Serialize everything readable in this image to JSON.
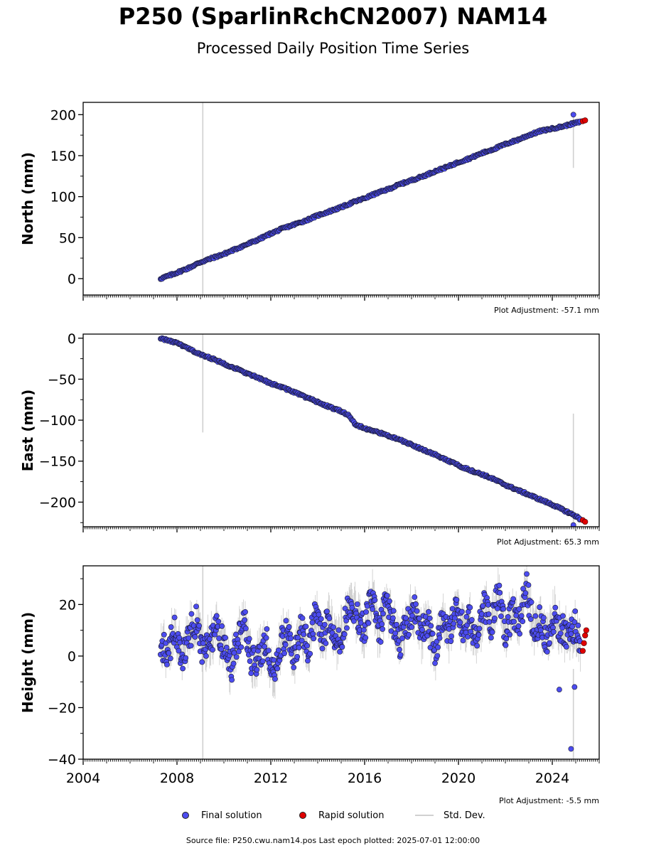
{
  "figure": {
    "title": "P250 (SparlinRchCN2007) NAM14",
    "subtitle": "Processed Daily Position Time Series",
    "legend": {
      "final_label": "Final solution",
      "rapid_label": "Rapid solution",
      "std_label": "Std. Dev."
    },
    "footer": "Source file: P250.cwu.nam14.pos  Last epoch plotted: 2025-07-01 12:00:00",
    "colors": {
      "final": "#4c4cf0",
      "rapid": "#e00000",
      "std": "#b0b0b0",
      "edge": "#1a1a2e"
    }
  },
  "chart_data": [
    {
      "type": "scatter",
      "ylabel": "North (mm)",
      "xlim": [
        2004,
        2026
      ],
      "ylim": [
        -20,
        215
      ],
      "yticks": [
        0,
        50,
        100,
        150,
        200
      ],
      "xticks": [
        2004,
        2008,
        2012,
        2016,
        2020,
        2024
      ],
      "adjustment": "Plot Adjustment: -57.1 mm",
      "series": [
        {
          "name": "Final solution",
          "x": [
            2007.3,
            2007.8,
            2008.5,
            2009.0,
            2009.5,
            2010.0,
            2010.5,
            2011.0,
            2011.5,
            2012.0,
            2012.5,
            2013.0,
            2013.5,
            2014.0,
            2014.5,
            2015.0,
            2015.5,
            2016.0,
            2016.5,
            2017.0,
            2017.5,
            2018.0,
            2018.5,
            2019.0,
            2019.5,
            2020.0,
            2020.5,
            2021.0,
            2021.5,
            2022.0,
            2022.5,
            2023.0,
            2023.5,
            2024.0,
            2024.5,
            2025.0,
            2025.2
          ],
          "y": [
            0,
            5,
            13,
            20,
            25,
            30,
            36,
            42,
            48,
            55,
            61,
            66,
            71,
            77,
            82,
            87,
            93,
            98,
            104,
            109,
            115,
            120,
            125,
            131,
            136,
            142,
            147,
            153,
            158,
            164,
            169,
            175,
            180,
            183,
            186,
            190,
            191
          ]
        },
        {
          "name": "Rapid solution",
          "x": [
            2025.3,
            2025.4
          ],
          "y": [
            192,
            193
          ]
        }
      ],
      "outliers": [
        {
          "x": 2024.9,
          "y": 200
        }
      ],
      "std_spikes": [
        {
          "x": 2009.1,
          "y0": -20,
          "y1": 215
        },
        {
          "x": 2024.9,
          "y0": 135,
          "y1": 200
        }
      ]
    },
    {
      "type": "scatter",
      "ylabel": "East (mm)",
      "xlim": [
        2004,
        2026
      ],
      "ylim": [
        -230,
        5
      ],
      "yticks": [
        0,
        -50,
        -100,
        -150,
        -200
      ],
      "xticks": [
        2004,
        2008,
        2012,
        2016,
        2020,
        2024
      ],
      "adjustment": "Plot Adjustment: 65.3 mm",
      "series": [
        {
          "name": "Final solution",
          "x": [
            2007.3,
            2008.0,
            2008.5,
            2009.0,
            2009.5,
            2010.0,
            2010.5,
            2011.0,
            2011.5,
            2012.0,
            2012.5,
            2013.0,
            2013.5,
            2014.0,
            2014.5,
            2015.0,
            2015.3,
            2015.6,
            2016.0,
            2016.5,
            2017.0,
            2017.5,
            2018.0,
            2018.5,
            2019.0,
            2019.5,
            2020.0,
            2020.5,
            2021.0,
            2021.5,
            2022.0,
            2022.5,
            2023.0,
            2023.5,
            2024.0,
            2024.5,
            2025.0,
            2025.2
          ],
          "y": [
            0,
            -6,
            -13,
            -20,
            -25,
            -31,
            -37,
            -43,
            -49,
            -55,
            -60,
            -66,
            -72,
            -78,
            -84,
            -89,
            -94,
            -105,
            -110,
            -114,
            -119,
            -124,
            -130,
            -136,
            -142,
            -149,
            -155,
            -161,
            -166,
            -172,
            -179,
            -185,
            -191,
            -197,
            -203,
            -210,
            -217,
            -221
          ]
        },
        {
          "name": "Rapid solution",
          "x": [
            2025.3,
            2025.4
          ],
          "y": [
            -222,
            -224
          ]
        }
      ],
      "outliers": [
        {
          "x": 2024.9,
          "y": -228
        }
      ],
      "std_spikes": [
        {
          "x": 2009.1,
          "y0": -115,
          "y1": 5
        },
        {
          "x": 2024.9,
          "y0": -230,
          "y1": -92
        }
      ]
    },
    {
      "type": "scatter",
      "ylabel": "Height (mm)",
      "xlim": [
        2004,
        2026
      ],
      "ylim": [
        -40,
        35
      ],
      "yticks": [
        20,
        0,
        -20,
        -40
      ],
      "xticks": [
        2004,
        2008,
        2012,
        2016,
        2020,
        2024
      ],
      "xticklabels": [
        "2004",
        "2008",
        "2012",
        "2016",
        "2020",
        "2024"
      ],
      "adjustment": "Plot Adjustment: -5.5 mm",
      "series": [
        {
          "name": "Final solution",
          "x": [
            2007.3,
            2007.6,
            2007.9,
            2008.2,
            2008.5,
            2008.8,
            2009.1,
            2009.4,
            2009.7,
            2010.0,
            2010.3,
            2010.6,
            2010.9,
            2011.2,
            2011.5,
            2011.8,
            2012.1,
            2012.4,
            2012.7,
            2013.0,
            2013.3,
            2013.6,
            2013.9,
            2014.2,
            2014.5,
            2014.8,
            2015.1,
            2015.4,
            2015.7,
            2016.0,
            2016.3,
            2016.6,
            2016.9,
            2017.2,
            2017.5,
            2017.8,
            2018.1,
            2018.4,
            2018.7,
            2019.0,
            2019.3,
            2019.6,
            2019.9,
            2020.2,
            2020.5,
            2020.8,
            2021.1,
            2021.4,
            2021.7,
            2022.0,
            2022.3,
            2022.6,
            2022.9,
            2023.2,
            2023.5,
            2023.8,
            2024.1,
            2024.4,
            2024.7,
            2025.0,
            2025.2
          ],
          "y": [
            5,
            0,
            12,
            -2,
            8,
            14,
            2,
            6,
            10,
            4,
            -5,
            7,
            12,
            -3,
            0,
            6,
            -8,
            4,
            9,
            0,
            12,
            3,
            16,
            8,
            14,
            5,
            10,
            22,
            15,
            10,
            25,
            8,
            20,
            14,
            5,
            12,
            18,
            8,
            14,
            0,
            16,
            8,
            20,
            10,
            14,
            6,
            20,
            12,
            24,
            8,
            18,
            12,
            28,
            10,
            14,
            6,
            16,
            10,
            8,
            12,
            5
          ]
        },
        {
          "name": "Rapid solution",
          "x": [
            2025.3,
            2025.35,
            2025.4,
            2025.45
          ],
          "y": [
            2,
            5,
            8,
            10
          ]
        }
      ],
      "outliers": [
        {
          "x": 2024.3,
          "y": -13
        },
        {
          "x": 2024.8,
          "y": -36
        },
        {
          "x": 2024.95,
          "y": -12
        }
      ],
      "std_spikes": [
        {
          "x": 2009.1,
          "y0": -40,
          "y1": 35
        },
        {
          "x": 2024.9,
          "y0": -40,
          "y1": -5
        }
      ]
    }
  ]
}
